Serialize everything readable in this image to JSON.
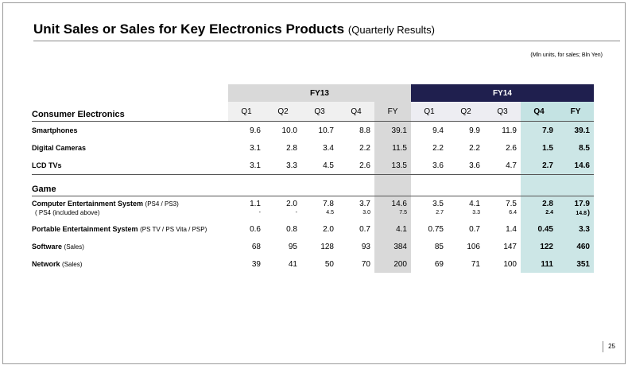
{
  "title": "Unit Sales or Sales for Key Electronics Products",
  "subtitle": "(Quarterly Results)",
  "units_note": "(Mln units, for sales; Bln Yen)",
  "page_number": "25",
  "table": {
    "fy13_label": "FY13",
    "fy14_label": "FY14",
    "quarters": [
      "Q1",
      "Q2",
      "Q3",
      "Q4",
      "FY",
      "Q1",
      "Q2",
      "Q3",
      "Q4",
      "FY"
    ],
    "section_ce": "Consumer Electronics",
    "section_game": "Game",
    "rows": {
      "smartphones": {
        "label": "Smartphones",
        "values": [
          "9.6",
          "10.0",
          "10.7",
          "8.8",
          "39.1",
          "9.4",
          "9.9",
          "11.9",
          "7.9",
          "39.1"
        ]
      },
      "cameras": {
        "label": "Digital Cameras",
        "values": [
          "3.1",
          "2.8",
          "3.4",
          "2.2",
          "11.5",
          "2.2",
          "2.2",
          "2.6",
          "1.5",
          "8.5"
        ]
      },
      "lcd": {
        "label": "LCD TVs",
        "values": [
          "3.1",
          "3.3",
          "4.5",
          "2.6",
          "13.5",
          "3.6",
          "3.6",
          "4.7",
          "2.7",
          "14.6"
        ]
      },
      "ces": {
        "label": "Computer Entertainment System",
        "label_paren": "(PS4 / PS3)",
        "label2": "( PS4 (included above)",
        "values": [
          "1.1",
          "2.0",
          "7.8",
          "3.7",
          "14.6",
          "3.5",
          "4.1",
          "7.5",
          "2.8",
          "17.9"
        ],
        "values2": [
          "-",
          "-",
          "4.5",
          "3.0",
          "7.5",
          "2.7",
          "3.3",
          "6.4",
          "2.4",
          "14.8"
        ],
        "close_paren": ")"
      },
      "pes": {
        "label": "Portable Entertainment System",
        "label_paren": "(PS TV / PS Vita / PSP)",
        "values": [
          "0.6",
          "0.8",
          "2.0",
          "0.7",
          "4.1",
          "0.75",
          "0.7",
          "1.4",
          "0.45",
          "3.3"
        ]
      },
      "software": {
        "label": "Software",
        "label_paren": "(Sales)",
        "values": [
          "68",
          "95",
          "128",
          "93",
          "384",
          "85",
          "106",
          "147",
          "122",
          "460"
        ]
      },
      "network": {
        "label": "Network",
        "label_paren": "(Sales)",
        "values": [
          "39",
          "41",
          "50",
          "70",
          "200",
          "69",
          "71",
          "100",
          "111",
          "351"
        ]
      }
    }
  },
  "colors": {
    "fy13_header": "#d9d9d9",
    "fy14_header": "#1f1f4e",
    "highlight": "#cce6e6"
  }
}
